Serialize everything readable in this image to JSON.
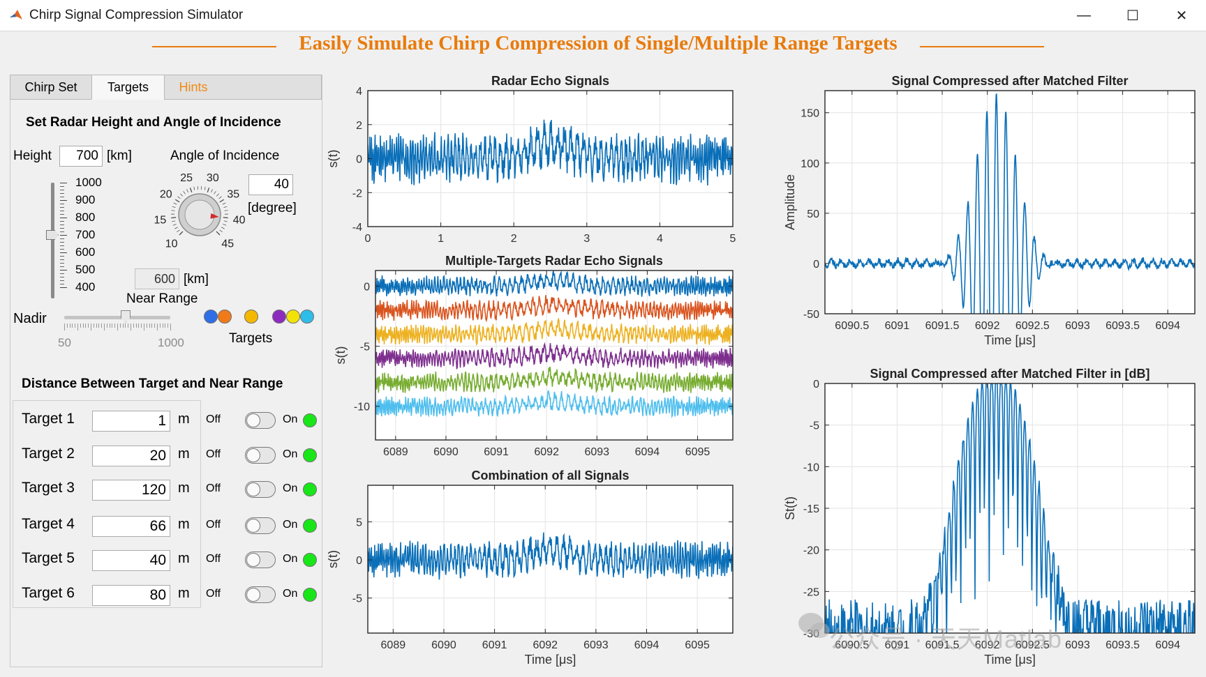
{
  "window": {
    "title": "Chirp Signal Compression Simulator",
    "min_glyph": "—",
    "max_glyph": "☐",
    "close_glyph": "✕",
    "app_icon": "matlab-icon"
  },
  "heading": "Easily Simulate Chirp Compression of Single/Multiple Range Targets",
  "tabs": {
    "chirp_set": "Chirp Set",
    "targets": "Targets",
    "hints": "Hints"
  },
  "targets_tab": {
    "section1_title": "Set Radar Height and Angle of Incidence",
    "height_label": "Height",
    "height_value": "700",
    "height_unit": "[km]",
    "angle_label": "Angle of Incidence",
    "angle_value": "40",
    "angle_unit": "[degree]",
    "height_slider": {
      "ticks": [
        "1000",
        "900",
        "800",
        "700",
        "600",
        "500",
        "400"
      ],
      "min": 400,
      "max": 1000,
      "value": 700
    },
    "knob": {
      "ticks": [
        "10",
        "15",
        "20",
        "25",
        "30",
        "35",
        "40",
        "45"
      ],
      "min": 10,
      "max": 45,
      "value": 40
    },
    "near_range_value": "600",
    "near_range_unit": "[km]",
    "near_range_label": "Near Range",
    "nadir_label": "Nadir",
    "nadir_slider": {
      "min_label": "50",
      "max_label": "1000",
      "min": 50,
      "max": 1000,
      "value": 600
    },
    "targets_label": "Targets",
    "lamp_colors": [
      "#2e6ee6",
      "#f07a1a",
      "#f5b800",
      "#8e2bbf",
      "#f2e20a",
      "#2dbde8"
    ],
    "section2_title": "Distance Between Target and Near Range",
    "rows": [
      {
        "label": "Target 1",
        "value": "1",
        "unit": "m",
        "off": "Off",
        "on": "On"
      },
      {
        "label": "Target 2",
        "value": "20",
        "unit": "m",
        "off": "Off",
        "on": "On"
      },
      {
        "label": "Target 3",
        "value": "120",
        "unit": "m",
        "off": "Off",
        "on": "On"
      },
      {
        "label": "Target 4",
        "value": "66",
        "unit": "m",
        "off": "Off",
        "on": "On"
      },
      {
        "label": "Target 5",
        "value": "40",
        "unit": "m",
        "off": "Off",
        "on": "On"
      },
      {
        "label": "Target 6",
        "value": "80",
        "unit": "m",
        "off": "Off",
        "on": "On"
      }
    ],
    "on_lamp_color": "#19e619"
  },
  "watermark": "公众号 · 天天Matlab",
  "chart_data": [
    {
      "id": "echo",
      "type": "line",
      "title": "Radar Echo Signals",
      "xlabel": "",
      "ylabel": "s(t)",
      "xlim": [
        0,
        5
      ],
      "ylim": [
        -4,
        4
      ],
      "xticks": [
        0,
        1,
        2,
        3,
        4,
        5
      ],
      "yticks": [
        -4,
        -2,
        0,
        2,
        4
      ],
      "grid": true,
      "series": [
        {
          "name": "echo",
          "color": "#0a6fb8",
          "kind": "chirp",
          "amp": 1.6,
          "offset": 0,
          "seed": 1,
          "n": 900
        }
      ]
    },
    {
      "id": "multi",
      "type": "line",
      "title": "Multiple-Targets  Radar Echo Signals",
      "xlabel": "",
      "ylabel": "s(t)",
      "xlim": [
        6088.6,
        6095.7
      ],
      "ylim": [
        -12.8,
        1.3
      ],
      "xticks": [
        6089,
        6090,
        6091,
        6092,
        6093,
        6094,
        6095
      ],
      "yticks": [
        -10,
        -5,
        0
      ],
      "grid": true,
      "series": [
        {
          "name": "Target 1",
          "color": "#0a6fb8",
          "kind": "chirp",
          "amp": 0.9,
          "offset": 0,
          "seed": 2,
          "n": 700
        },
        {
          "name": "Target 2",
          "color": "#d9531e",
          "kind": "chirp",
          "amp": 0.9,
          "offset": -2,
          "seed": 3,
          "n": 700
        },
        {
          "name": "Target 3",
          "color": "#edb120",
          "kind": "chirp",
          "amp": 0.9,
          "offset": -4,
          "seed": 4,
          "n": 700
        },
        {
          "name": "Target 4",
          "color": "#7e2f8e",
          "kind": "chirp",
          "amp": 0.9,
          "offset": -6,
          "seed": 5,
          "n": 700
        },
        {
          "name": "Target 5",
          "color": "#77ac30",
          "kind": "chirp",
          "amp": 0.9,
          "offset": -8,
          "seed": 6,
          "n": 700
        },
        {
          "name": "Target 6",
          "color": "#4dbeee",
          "kind": "chirp",
          "amp": 0.9,
          "offset": -10,
          "seed": 7,
          "n": 700
        }
      ]
    },
    {
      "id": "combo",
      "type": "line",
      "title": "Combination of all Signals",
      "xlabel": "Time [μs]",
      "ylabel": "s(t)",
      "xlim": [
        6088.5,
        6095.7
      ],
      "ylim": [
        -9.6,
        9.8
      ],
      "xticks": [
        6089,
        6090,
        6091,
        6092,
        6093,
        6094,
        6095
      ],
      "yticks": [
        -5,
        0,
        5
      ],
      "grid": true,
      "series": [
        {
          "name": "combined",
          "color": "#0a6fb8",
          "kind": "chirp",
          "amp": 2.6,
          "offset": 0,
          "seed": 8,
          "n": 900
        }
      ]
    },
    {
      "id": "mf",
      "type": "line",
      "title": "Signal Compressed after Matched Filter",
      "xlabel": "Time [μs]",
      "ylabel": "Amplitude",
      "xlim": [
        6090.2,
        6094.3
      ],
      "ylim": [
        -50,
        172
      ],
      "xticks": [
        6090.5,
        6091,
        6091.5,
        6092,
        6092.5,
        6093,
        6093.5,
        6094
      ],
      "xticklabels": [
        "6090.5",
        "6091",
        "6091.5",
        "6092",
        "6092.5",
        "6093",
        "6093.5",
        "6094"
      ],
      "yticks": [
        -50,
        0,
        50,
        100,
        150
      ],
      "grid": true,
      "series": [
        {
          "name": "compressed",
          "color": "#0a6fb8",
          "kind": "pulse",
          "peak": 170,
          "center": 6092.1,
          "width": 0.3,
          "floor": 6,
          "seed": 9,
          "n": 900
        }
      ]
    },
    {
      "id": "mfdb",
      "type": "line",
      "title": "Signal Compressed after Matched Filter in [dB]",
      "xlabel": "Time [μs]",
      "ylabel": "St(t)",
      "xlim": [
        6090.2,
        6094.3
      ],
      "ylim": [
        -30,
        0
      ],
      "xticks": [
        6090.5,
        6091,
        6091.5,
        6092,
        6092.5,
        6093,
        6093.5,
        6094
      ],
      "xticklabels": [
        "6090.5",
        "6091",
        "6091.5",
        "6092",
        "6092.5",
        "6093",
        "6093.5",
        "6094"
      ],
      "yticks": [
        -30,
        -25,
        -20,
        -15,
        -10,
        -5,
        0
      ],
      "grid": true,
      "series": [
        {
          "name": "compressed-db",
          "color": "#0a6fb8",
          "kind": "db",
          "center": 6092.1,
          "seed": 10,
          "n": 600
        }
      ]
    }
  ]
}
